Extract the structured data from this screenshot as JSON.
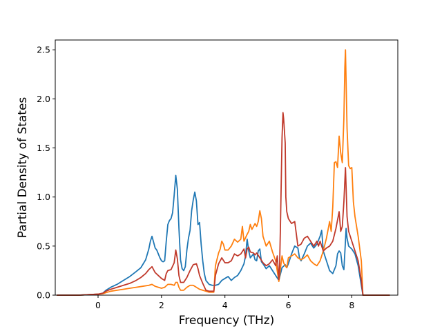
{
  "chart_data": {
    "type": "line",
    "title": "",
    "xlabel": "Frequency (THz)",
    "ylabel": "Partial Density of States",
    "xlim": [
      -1.35,
      9.45
    ],
    "ylim": [
      0,
      2.6
    ],
    "xticks": [
      0,
      2,
      4,
      6,
      8
    ],
    "xtick_labels": [
      "0",
      "2",
      "4",
      "6",
      "8"
    ],
    "yticks": [
      0,
      0.5,
      1.0,
      1.5,
      2.0,
      2.5
    ],
    "ytick_labels": [
      "0.0",
      "0.5",
      "1.0",
      "1.5",
      "2.0",
      "2.5"
    ],
    "grid": false,
    "legend": "none",
    "series": [
      {
        "color": "#1f77b4",
        "points": [
          [
            -1.3,
            0
          ],
          [
            -0.6,
            0
          ],
          [
            -0.3,
            0.005
          ],
          [
            0,
            0.01
          ],
          [
            0.15,
            0.02
          ],
          [
            0.25,
            0.05
          ],
          [
            0.4,
            0.08
          ],
          [
            0.6,
            0.11
          ],
          [
            0.8,
            0.15
          ],
          [
            1.0,
            0.19
          ],
          [
            1.2,
            0.24
          ],
          [
            1.35,
            0.28
          ],
          [
            1.5,
            0.36
          ],
          [
            1.6,
            0.47
          ],
          [
            1.65,
            0.55
          ],
          [
            1.7,
            0.6
          ],
          [
            1.75,
            0.54
          ],
          [
            1.8,
            0.48
          ],
          [
            1.85,
            0.46
          ],
          [
            1.9,
            0.42
          ],
          [
            1.95,
            0.38
          ],
          [
            2.0,
            0.35
          ],
          [
            2.05,
            0.34
          ],
          [
            2.1,
            0.35
          ],
          [
            2.15,
            0.55
          ],
          [
            2.2,
            0.72
          ],
          [
            2.25,
            0.76
          ],
          [
            2.3,
            0.78
          ],
          [
            2.35,
            0.84
          ],
          [
            2.4,
            1.02
          ],
          [
            2.45,
            1.22
          ],
          [
            2.5,
            1.08
          ],
          [
            2.55,
            0.68
          ],
          [
            2.6,
            0.36
          ],
          [
            2.65,
            0.27
          ],
          [
            2.7,
            0.25
          ],
          [
            2.75,
            0.29
          ],
          [
            2.8,
            0.46
          ],
          [
            2.85,
            0.58
          ],
          [
            2.9,
            0.66
          ],
          [
            2.95,
            0.86
          ],
          [
            3.0,
            0.97
          ],
          [
            3.05,
            1.05
          ],
          [
            3.1,
            0.96
          ],
          [
            3.15,
            0.72
          ],
          [
            3.2,
            0.74
          ],
          [
            3.25,
            0.52
          ],
          [
            3.3,
            0.35
          ],
          [
            3.35,
            0.22
          ],
          [
            3.4,
            0.15
          ],
          [
            3.5,
            0.11
          ],
          [
            3.6,
            0.1
          ],
          [
            3.7,
            0.1
          ],
          [
            3.8,
            0.11
          ],
          [
            3.85,
            0.13
          ],
          [
            3.9,
            0.15
          ],
          [
            4.0,
            0.17
          ],
          [
            4.1,
            0.19
          ],
          [
            4.2,
            0.15
          ],
          [
            4.3,
            0.18
          ],
          [
            4.4,
            0.2
          ],
          [
            4.5,
            0.25
          ],
          [
            4.6,
            0.32
          ],
          [
            4.65,
            0.4
          ],
          [
            4.7,
            0.57
          ],
          [
            4.75,
            0.45
          ],
          [
            4.8,
            0.38
          ],
          [
            4.85,
            0.4
          ],
          [
            4.9,
            0.42
          ],
          [
            4.95,
            0.36
          ],
          [
            5.0,
            0.35
          ],
          [
            5.05,
            0.45
          ],
          [
            5.1,
            0.47
          ],
          [
            5.15,
            0.34
          ],
          [
            5.2,
            0.32
          ],
          [
            5.3,
            0.27
          ],
          [
            5.4,
            0.3
          ],
          [
            5.5,
            0.25
          ],
          [
            5.6,
            0.2
          ],
          [
            5.7,
            0.15
          ],
          [
            5.8,
            0.28
          ],
          [
            5.9,
            0.31
          ],
          [
            5.95,
            0.28
          ],
          [
            6.0,
            0.32
          ],
          [
            6.1,
            0.42
          ],
          [
            6.2,
            0.5
          ],
          [
            6.3,
            0.48
          ],
          [
            6.35,
            0.38
          ],
          [
            6.4,
            0.35
          ],
          [
            6.5,
            0.42
          ],
          [
            6.6,
            0.5
          ],
          [
            6.7,
            0.53
          ],
          [
            6.8,
            0.48
          ],
          [
            6.9,
            0.52
          ],
          [
            7.0,
            0.6
          ],
          [
            7.05,
            0.66
          ],
          [
            7.1,
            0.45
          ],
          [
            7.2,
            0.35
          ],
          [
            7.3,
            0.25
          ],
          [
            7.4,
            0.22
          ],
          [
            7.5,
            0.3
          ],
          [
            7.55,
            0.42
          ],
          [
            7.6,
            0.45
          ],
          [
            7.65,
            0.43
          ],
          [
            7.7,
            0.3
          ],
          [
            7.75,
            0.26
          ],
          [
            7.8,
            0.55
          ],
          [
            7.82,
            0.68
          ],
          [
            7.85,
            0.58
          ],
          [
            7.9,
            0.5
          ],
          [
            8.0,
            0.47
          ],
          [
            8.1,
            0.42
          ],
          [
            8.2,
            0.3
          ],
          [
            8.3,
            0.1
          ],
          [
            8.35,
            0
          ],
          [
            9.2,
            0
          ]
        ]
      },
      {
        "color": "#ff7f0e",
        "points": [
          [
            -1.3,
            0
          ],
          [
            -0.6,
            0
          ],
          [
            -0.3,
            0.005
          ],
          [
            0,
            0.01
          ],
          [
            0.15,
            0.015
          ],
          [
            0.25,
            0.025
          ],
          [
            0.4,
            0.04
          ],
          [
            0.6,
            0.05
          ],
          [
            0.8,
            0.06
          ],
          [
            1.0,
            0.07
          ],
          [
            1.2,
            0.08
          ],
          [
            1.4,
            0.09
          ],
          [
            1.6,
            0.1
          ],
          [
            1.7,
            0.11
          ],
          [
            1.8,
            0.09
          ],
          [
            1.9,
            0.08
          ],
          [
            2.0,
            0.07
          ],
          [
            2.1,
            0.08
          ],
          [
            2.2,
            0.11
          ],
          [
            2.3,
            0.11
          ],
          [
            2.4,
            0.1
          ],
          [
            2.45,
            0.13
          ],
          [
            2.5,
            0.13
          ],
          [
            2.55,
            0.08
          ],
          [
            2.6,
            0.05
          ],
          [
            2.7,
            0.05
          ],
          [
            2.8,
            0.08
          ],
          [
            2.9,
            0.1
          ],
          [
            3.0,
            0.1
          ],
          [
            3.1,
            0.08
          ],
          [
            3.2,
            0.06
          ],
          [
            3.3,
            0.05
          ],
          [
            3.4,
            0.04
          ],
          [
            3.5,
            0.03
          ],
          [
            3.6,
            0.03
          ],
          [
            3.65,
            0.03
          ],
          [
            3.7,
            0.3
          ],
          [
            3.8,
            0.43
          ],
          [
            3.85,
            0.47
          ],
          [
            3.9,
            0.55
          ],
          [
            3.95,
            0.52
          ],
          [
            4.0,
            0.46
          ],
          [
            4.1,
            0.46
          ],
          [
            4.2,
            0.5
          ],
          [
            4.3,
            0.57
          ],
          [
            4.4,
            0.54
          ],
          [
            4.5,
            0.57
          ],
          [
            4.55,
            0.7
          ],
          [
            4.6,
            0.55
          ],
          [
            4.7,
            0.62
          ],
          [
            4.75,
            0.65
          ],
          [
            4.8,
            0.72
          ],
          [
            4.85,
            0.67
          ],
          [
            4.9,
            0.7
          ],
          [
            4.95,
            0.73
          ],
          [
            5.0,
            0.7
          ],
          [
            5.05,
            0.75
          ],
          [
            5.1,
            0.86
          ],
          [
            5.15,
            0.78
          ],
          [
            5.2,
            0.6
          ],
          [
            5.3,
            0.5
          ],
          [
            5.4,
            0.55
          ],
          [
            5.5,
            0.44
          ],
          [
            5.6,
            0.35
          ],
          [
            5.7,
            0.14
          ],
          [
            5.8,
            0.4
          ],
          [
            5.85,
            0.33
          ],
          [
            5.9,
            0.3
          ],
          [
            5.95,
            0.28
          ],
          [
            6.0,
            0.38
          ],
          [
            6.1,
            0.4
          ],
          [
            6.2,
            0.42
          ],
          [
            6.3,
            0.38
          ],
          [
            6.4,
            0.36
          ],
          [
            6.5,
            0.38
          ],
          [
            6.6,
            0.41
          ],
          [
            6.7,
            0.35
          ],
          [
            6.8,
            0.32
          ],
          [
            6.9,
            0.3
          ],
          [
            7.0,
            0.35
          ],
          [
            7.1,
            0.45
          ],
          [
            7.2,
            0.58
          ],
          [
            7.3,
            0.75
          ],
          [
            7.35,
            0.65
          ],
          [
            7.4,
            0.9
          ],
          [
            7.45,
            1.35
          ],
          [
            7.5,
            1.36
          ],
          [
            7.55,
            1.3
          ],
          [
            7.6,
            1.62
          ],
          [
            7.65,
            1.45
          ],
          [
            7.7,
            1.35
          ],
          [
            7.75,
            1.8
          ],
          [
            7.78,
            2.32
          ],
          [
            7.8,
            2.5
          ],
          [
            7.85,
            1.7
          ],
          [
            7.9,
            1.32
          ],
          [
            7.95,
            1.29
          ],
          [
            8.0,
            1.3
          ],
          [
            8.05,
            0.95
          ],
          [
            8.1,
            0.8
          ],
          [
            8.2,
            0.6
          ],
          [
            8.3,
            0.35
          ],
          [
            8.35,
            0
          ],
          [
            9.2,
            0
          ]
        ]
      },
      {
        "color": "#c0392b",
        "points": [
          [
            -1.3,
            0
          ],
          [
            -0.6,
            0
          ],
          [
            -0.3,
            0.005
          ],
          [
            0,
            0.01
          ],
          [
            0.15,
            0.02
          ],
          [
            0.25,
            0.04
          ],
          [
            0.4,
            0.06
          ],
          [
            0.6,
            0.08
          ],
          [
            0.8,
            0.1
          ],
          [
            1.0,
            0.12
          ],
          [
            1.2,
            0.15
          ],
          [
            1.35,
            0.18
          ],
          [
            1.5,
            0.22
          ],
          [
            1.6,
            0.26
          ],
          [
            1.7,
            0.29
          ],
          [
            1.75,
            0.26
          ],
          [
            1.8,
            0.23
          ],
          [
            1.9,
            0.2
          ],
          [
            2.0,
            0.17
          ],
          [
            2.1,
            0.15
          ],
          [
            2.15,
            0.22
          ],
          [
            2.2,
            0.25
          ],
          [
            2.3,
            0.26
          ],
          [
            2.4,
            0.33
          ],
          [
            2.45,
            0.46
          ],
          [
            2.5,
            0.37
          ],
          [
            2.55,
            0.2
          ],
          [
            2.6,
            0.13
          ],
          [
            2.7,
            0.13
          ],
          [
            2.8,
            0.18
          ],
          [
            2.9,
            0.25
          ],
          [
            3.0,
            0.31
          ],
          [
            3.1,
            0.32
          ],
          [
            3.15,
            0.27
          ],
          [
            3.2,
            0.2
          ],
          [
            3.3,
            0.12
          ],
          [
            3.4,
            0.05
          ],
          [
            3.5,
            0.04
          ],
          [
            3.6,
            0.04
          ],
          [
            3.65,
            0.04
          ],
          [
            3.7,
            0.2
          ],
          [
            3.8,
            0.32
          ],
          [
            3.9,
            0.38
          ],
          [
            4.0,
            0.33
          ],
          [
            4.1,
            0.33
          ],
          [
            4.2,
            0.35
          ],
          [
            4.3,
            0.42
          ],
          [
            4.4,
            0.4
          ],
          [
            4.5,
            0.42
          ],
          [
            4.6,
            0.47
          ],
          [
            4.65,
            0.38
          ],
          [
            4.7,
            0.47
          ],
          [
            4.75,
            0.49
          ],
          [
            4.8,
            0.44
          ],
          [
            4.9,
            0.43
          ],
          [
            4.95,
            0.41
          ],
          [
            5.0,
            0.43
          ],
          [
            5.1,
            0.38
          ],
          [
            5.2,
            0.33
          ],
          [
            5.3,
            0.3
          ],
          [
            5.4,
            0.32
          ],
          [
            5.5,
            0.36
          ],
          [
            5.6,
            0.3
          ],
          [
            5.65,
            0.4
          ],
          [
            5.7,
            0.16
          ],
          [
            5.72,
            0.25
          ],
          [
            5.75,
            0.7
          ],
          [
            5.8,
            1.6
          ],
          [
            5.83,
            1.86
          ],
          [
            5.85,
            1.8
          ],
          [
            5.9,
            1.55
          ],
          [
            5.92,
            1.0
          ],
          [
            5.95,
            0.85
          ],
          [
            6.0,
            0.78
          ],
          [
            6.1,
            0.73
          ],
          [
            6.2,
            0.75
          ],
          [
            6.3,
            0.5
          ],
          [
            6.4,
            0.52
          ],
          [
            6.5,
            0.58
          ],
          [
            6.6,
            0.6
          ],
          [
            6.7,
            0.55
          ],
          [
            6.8,
            0.5
          ],
          [
            6.9,
            0.55
          ],
          [
            6.95,
            0.5
          ],
          [
            7.0,
            0.55
          ],
          [
            7.1,
            0.45
          ],
          [
            7.2,
            0.48
          ],
          [
            7.3,
            0.5
          ],
          [
            7.4,
            0.55
          ],
          [
            7.5,
            0.68
          ],
          [
            7.6,
            0.85
          ],
          [
            7.65,
            0.65
          ],
          [
            7.7,
            0.7
          ],
          [
            7.75,
            0.95
          ],
          [
            7.8,
            1.3
          ],
          [
            7.85,
            0.8
          ],
          [
            7.9,
            0.65
          ],
          [
            8.0,
            0.55
          ],
          [
            8.1,
            0.45
          ],
          [
            8.2,
            0.35
          ],
          [
            8.3,
            0.15
          ],
          [
            8.35,
            0
          ],
          [
            9.2,
            0
          ]
        ]
      }
    ]
  }
}
